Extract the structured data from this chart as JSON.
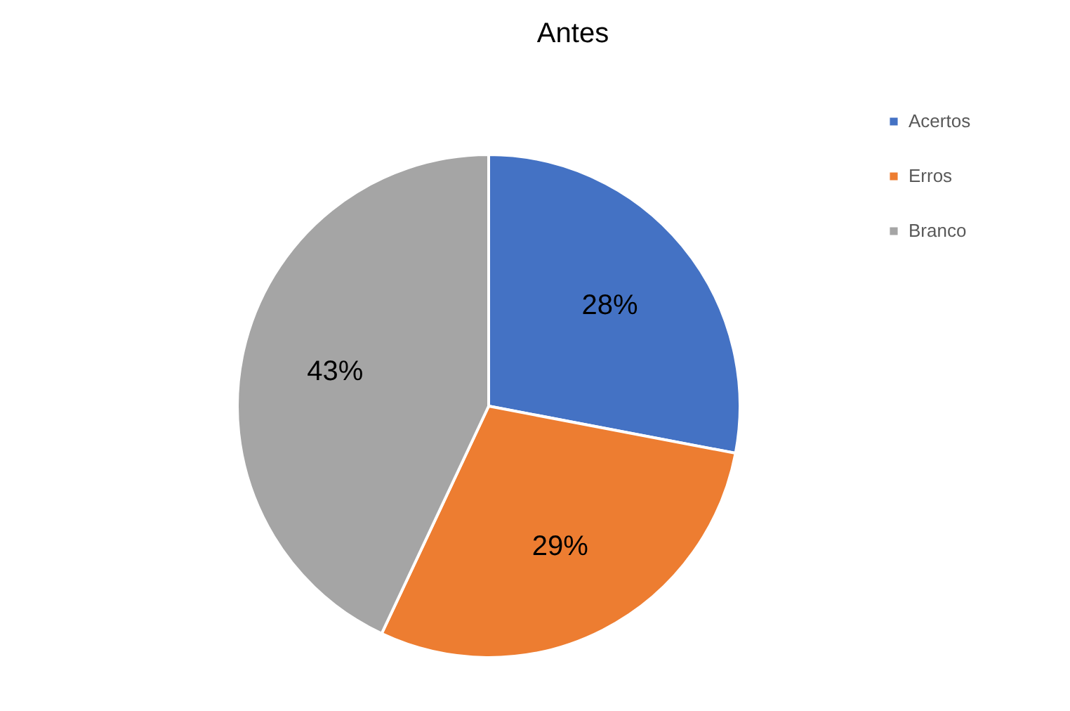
{
  "chart_data": {
    "type": "pie",
    "title": "Antes",
    "categories": [
      "Acertos",
      "Erros",
      "Branco"
    ],
    "values": [
      28,
      29,
      43
    ],
    "value_labels": [
      "28%",
      "29%",
      "43%"
    ],
    "colors": [
      "#4472c4",
      "#ed7d31",
      "#a5a5a5"
    ],
    "legend": "right"
  }
}
